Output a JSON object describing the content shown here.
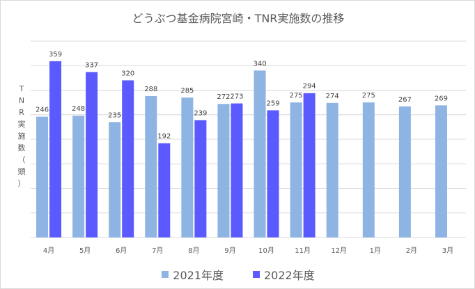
{
  "chart_data": {
    "type": "bar",
    "title": "どうぶつ基金病院宮崎・TNR実施数の推移",
    "ylabel": "TNR実施数（頭）",
    "xlabel": "",
    "ylim": [
      0,
      400
    ],
    "grid": true,
    "legend_position": "bottom",
    "categories": [
      "4月",
      "5月",
      "6月",
      "7月",
      "8月",
      "9月",
      "10月",
      "11月",
      "12月",
      "1月",
      "2月",
      "3月"
    ],
    "series": [
      {
        "name": "2021年度",
        "color": "#8EB4E3",
        "values": [
          246,
          248,
          235,
          288,
          285,
          272,
          340,
          275,
          274,
          275,
          267,
          269
        ]
      },
      {
        "name": "2022年度",
        "color": "#5A5AFF",
        "values": [
          359,
          337,
          320,
          192,
          239,
          273,
          259,
          294,
          null,
          null,
          null,
          null
        ]
      }
    ]
  }
}
